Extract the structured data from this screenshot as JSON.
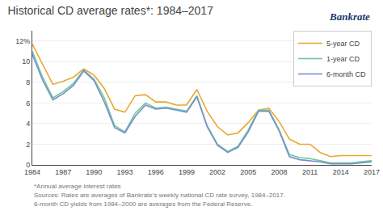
{
  "chart_data": {
    "type": "line",
    "title": "Historical CD average rates*: 1984–2017",
    "x": [
      1984,
      1985,
      1986,
      1987,
      1988,
      1989,
      1990,
      1991,
      1992,
      1993,
      1994,
      1995,
      1996,
      1997,
      1998,
      1999,
      2000,
      2001,
      2002,
      2003,
      2004,
      2005,
      2006,
      2007,
      2008,
      2009,
      2010,
      2011,
      2012,
      2013,
      2014,
      2015,
      2016,
      2017
    ],
    "series": [
      {
        "name": "5-year CD",
        "color": "#e8a832",
        "values": [
          11.7,
          9.7,
          7.8,
          8.1,
          8.5,
          9.3,
          8.7,
          7.4,
          5.4,
          5.1,
          6.7,
          6.8,
          6.1,
          6.1,
          5.8,
          5.8,
          7.3,
          5.2,
          3.7,
          2.9,
          3.1,
          4.1,
          5.3,
          5.5,
          4.2,
          2.5,
          2.0,
          2.0,
          1.2,
          0.8,
          0.9,
          0.9,
          0.9,
          0.9
        ]
      },
      {
        "name": "1-year CD",
        "color": "#6ec8a0",
        "values": [
          11.0,
          8.5,
          6.5,
          7.1,
          7.9,
          9.2,
          8.3,
          6.5,
          3.8,
          3.2,
          5.0,
          6.0,
          5.5,
          5.6,
          5.4,
          5.2,
          6.7,
          3.8,
          2.0,
          1.3,
          1.8,
          3.4,
          5.3,
          5.3,
          3.4,
          1.0,
          0.7,
          0.6,
          0.4,
          0.2,
          0.2,
          0.2,
          0.3,
          0.4
        ]
      },
      {
        "name": "6-month CD",
        "color": "#7b8fc8",
        "values": [
          10.7,
          8.2,
          6.3,
          6.9,
          7.7,
          9.1,
          8.17,
          6.1,
          3.6,
          3.1,
          4.7,
          5.8,
          5.4,
          5.5,
          5.3,
          5.1,
          6.6,
          3.7,
          1.9,
          1.2,
          1.7,
          3.2,
          5.2,
          5.2,
          3.3,
          0.8,
          0.5,
          0.4,
          0.3,
          0.1,
          0.1,
          0.1,
          0.2,
          0.3
        ]
      }
    ],
    "xlim": [
      1984,
      2017
    ],
    "ylim": [
      0,
      13
    ],
    "xticks": [
      1984,
      1987,
      1990,
      1993,
      1996,
      1999,
      2002,
      2005,
      2008,
      2011,
      2014,
      2017
    ],
    "yticks": [
      0,
      2,
      4,
      6,
      8,
      10,
      {
        "value": 12,
        "label": "12%"
      }
    ],
    "grid": true,
    "legend": "upper right",
    "annotations": [
      "*Annual average interest rates",
      "Sources: Rates are averages of Bankrate’s weekly national CD rate survey, 1984–2017.",
      "6-month CD yields from 1984–2000 are averages from the Federal Reserve.",
      "Bankrate"
    ]
  }
}
